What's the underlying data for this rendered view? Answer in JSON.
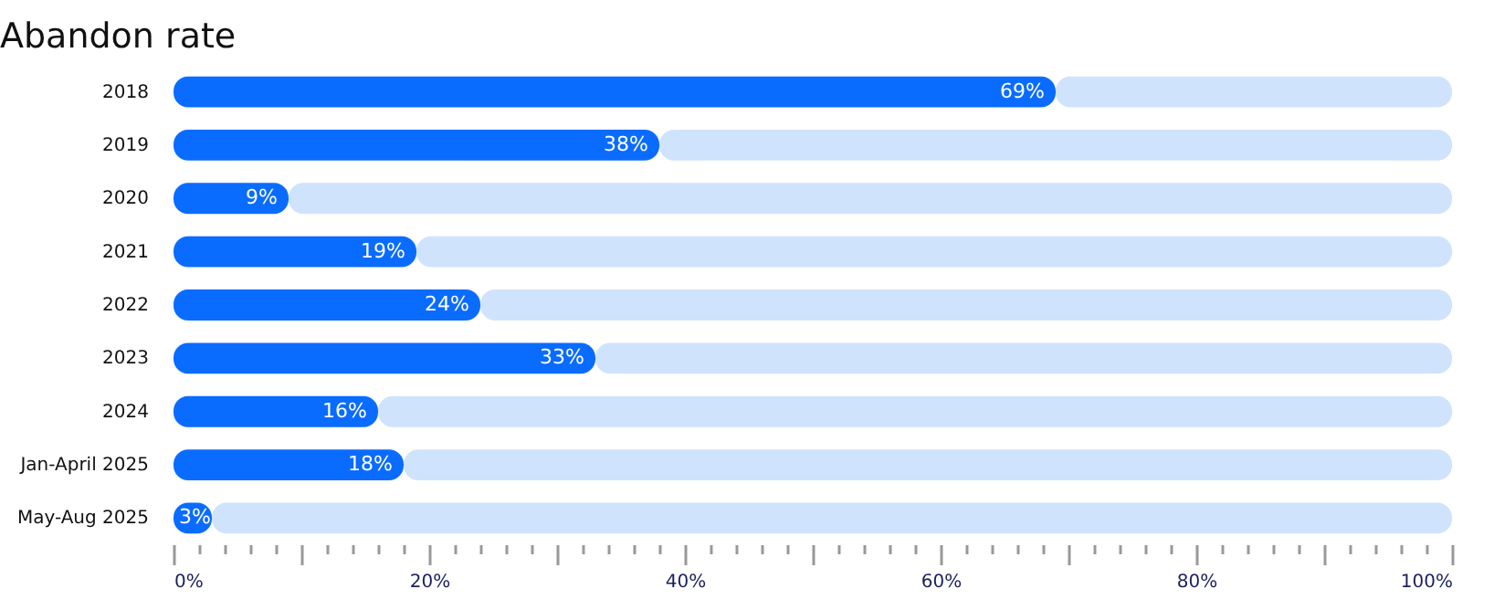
{
  "chart_data": {
    "type": "bar",
    "orientation": "horizontal",
    "stacked": true,
    "title": "Abandon rate",
    "categories": [
      "2018",
      "2019",
      "2020",
      "2021",
      "2022",
      "2023",
      "2024",
      "Jan-April 2025",
      "May-Aug 2025"
    ],
    "series": [
      {
        "color": "#0a6cff",
        "values": [
          69,
          38,
          9,
          19,
          24,
          33,
          16,
          18,
          3
        ],
        "value_labels": [
          "69%",
          "38%",
          "9%",
          "19%",
          "24%",
          "33%",
          "16%",
          "18%",
          "3%"
        ]
      },
      {
        "color": "#d0e3fd",
        "values": [
          31,
          62,
          91,
          81,
          76,
          67,
          84,
          82,
          97
        ]
      }
    ],
    "xlim": [
      0,
      100
    ],
    "xticks": [
      {
        "value": 0,
        "label": "0%"
      },
      {
        "value": 2,
        "label": null
      },
      {
        "value": 4,
        "label": null
      },
      {
        "value": 6,
        "label": null
      },
      {
        "value": 8,
        "label": null
      },
      {
        "value": 10,
        "label": null
      },
      {
        "value": 12,
        "label": null
      },
      {
        "value": 14,
        "label": null
      },
      {
        "value": 16,
        "label": null
      },
      {
        "value": 18,
        "label": null
      },
      {
        "value": 20,
        "label": "20%"
      },
      {
        "value": 22,
        "label": null
      },
      {
        "value": 24,
        "label": null
      },
      {
        "value": 26,
        "label": null
      },
      {
        "value": 28,
        "label": null
      },
      {
        "value": 30,
        "label": null
      },
      {
        "value": 32,
        "label": null
      },
      {
        "value": 34,
        "label": null
      },
      {
        "value": 36,
        "label": null
      },
      {
        "value": 38,
        "label": null
      },
      {
        "value": 40,
        "label": "40%"
      },
      {
        "value": 42,
        "label": null
      },
      {
        "value": 44,
        "label": null
      },
      {
        "value": 46,
        "label": null
      },
      {
        "value": 48,
        "label": null
      },
      {
        "value": 50,
        "label": null
      },
      {
        "value": 52,
        "label": null
      },
      {
        "value": 54,
        "label": null
      },
      {
        "value": 56,
        "label": null
      },
      {
        "value": 58,
        "label": null
      },
      {
        "value": 60,
        "label": "60%"
      },
      {
        "value": 62,
        "label": null
      },
      {
        "value": 64,
        "label": null
      },
      {
        "value": 66,
        "label": null
      },
      {
        "value": 68,
        "label": null
      },
      {
        "value": 70,
        "label": null
      },
      {
        "value": 72,
        "label": null
      },
      {
        "value": 74,
        "label": null
      },
      {
        "value": 76,
        "label": null
      },
      {
        "value": 78,
        "label": null
      },
      {
        "value": 80,
        "label": "80%"
      },
      {
        "value": 82,
        "label": null
      },
      {
        "value": 84,
        "label": null
      },
      {
        "value": 86,
        "label": null
      },
      {
        "value": 88,
        "label": null
      },
      {
        "value": 90,
        "label": null
      },
      {
        "value": 92,
        "label": null
      },
      {
        "value": 94,
        "label": null
      },
      {
        "value": 96,
        "label": null
      },
      {
        "value": 98,
        "label": null
      },
      {
        "value": 100,
        "label": "100%"
      }
    ],
    "grid": false,
    "legend": false
  }
}
